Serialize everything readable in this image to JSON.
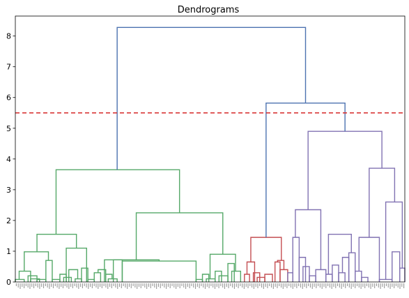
{
  "chart_data": {
    "type": "dendrogram",
    "title": "Dendrograms",
    "xlabel": "",
    "ylabel": "",
    "ylim": [
      0,
      8.65
    ],
    "yticks": [
      0,
      1,
      2,
      3,
      4,
      5,
      6,
      7,
      8
    ],
    "ytick_labels": [
      "0",
      "1",
      "2",
      "3",
      "4",
      "5",
      "6",
      "7",
      "8"
    ],
    "n_leaves": 200,
    "grid": false,
    "threshold": {
      "value": 5.5,
      "color": "#d62728",
      "style": "dashed"
    },
    "colors": {
      "above_threshold": "#4c72b0",
      "cluster_green": "#55a868",
      "cluster_red": "#c44e52",
      "cluster_purple": "#8172b2"
    },
    "links": [
      {
        "x1": 0,
        "x2": 7,
        "h": 0.08,
        "c": "green"
      },
      {
        "x1": 3,
        "x2": 12,
        "h": 0.35,
        "c": "green"
      },
      {
        "x1": 10,
        "x2": 17,
        "h": 0.2,
        "c": "green"
      },
      {
        "x1": 12,
        "x2": 19,
        "h": 0.1,
        "c": "green"
      },
      {
        "x1": 17,
        "x2": 24,
        "h": 0.08,
        "c": "green"
      },
      {
        "x1": 24,
        "x2": 29,
        "h": 0.7,
        "c": "green"
      },
      {
        "x1": 7,
        "x2": 26,
        "h": 0.98,
        "c": "green"
      },
      {
        "x1": 29,
        "x2": 35,
        "h": 0.08,
        "c": "green"
      },
      {
        "x1": 35,
        "x2": 40,
        "h": 0.25,
        "c": "green"
      },
      {
        "x1": 38,
        "x2": 44,
        "h": 0.15,
        "c": "green"
      },
      {
        "x1": 42,
        "x2": 49,
        "h": 0.4,
        "c": "green"
      },
      {
        "x1": 47,
        "x2": 52,
        "h": 0.1,
        "c": "green"
      },
      {
        "x1": 52,
        "x2": 57,
        "h": 0.45,
        "c": "green"
      },
      {
        "x1": 40,
        "x2": 56,
        "h": 1.1,
        "c": "green"
      },
      {
        "x1": 17,
        "x2": 48,
        "h": 1.55,
        "c": "green"
      },
      {
        "x1": 57,
        "x2": 62,
        "h": 0.08,
        "c": "green"
      },
      {
        "x1": 62,
        "x2": 67,
        "h": 0.3,
        "c": "green"
      },
      {
        "x1": 65,
        "x2": 71,
        "h": 0.4,
        "c": "green"
      },
      {
        "x1": 71,
        "x2": 76,
        "h": 0.25,
        "c": "green"
      },
      {
        "x1": 73,
        "x2": 80,
        "h": 0.1,
        "c": "green"
      },
      {
        "x1": 70,
        "x2": 84,
        "h": 0.72,
        "c": "green"
      },
      {
        "x1": 84,
        "x2": 142,
        "h": 0.68,
        "c": "green"
      },
      {
        "x1": 77,
        "x2": 113,
        "h": 0.72,
        "c": "green"
      },
      {
        "x1": 142,
        "x2": 147,
        "h": 0.08,
        "c": "green"
      },
      {
        "x1": 147,
        "x2": 152,
        "h": 0.25,
        "c": "green"
      },
      {
        "x1": 150,
        "x2": 157,
        "h": 0.1,
        "c": "green"
      },
      {
        "x1": 157,
        "x2": 162,
        "h": 0.35,
        "c": "green"
      },
      {
        "x1": 160,
        "x2": 167,
        "h": 0.2,
        "c": "green"
      },
      {
        "x1": 167,
        "x2": 172,
        "h": 0.6,
        "c": "green"
      },
      {
        "x1": 170,
        "x2": 177,
        "h": 0.35,
        "c": "green"
      },
      {
        "x1": 153,
        "x2": 173,
        "h": 0.9,
        "c": "green"
      },
      {
        "x1": 95,
        "x2": 163,
        "h": 2.25,
        "c": "green"
      },
      {
        "x1": 32,
        "x2": 129,
        "h": 3.65,
        "c": "green"
      },
      {
        "x1": 180,
        "x2": 184,
        "h": 0.25,
        "c": "red"
      },
      {
        "x1": 182,
        "x2": 188,
        "h": 0.65,
        "c": "red"
      },
      {
        "x1": 187,
        "x2": 192,
        "h": 0.3,
        "c": "red"
      },
      {
        "x1": 190,
        "x2": 196,
        "h": 0.15,
        "c": "red"
      },
      {
        "x1": 196,
        "x2": 202,
        "h": 0.25,
        "c": "red"
      },
      {
        "x1": 204,
        "x2": 208,
        "h": 0.65,
        "c": "red"
      },
      {
        "x1": 208,
        "x2": 214,
        "h": 0.4,
        "c": "red"
      },
      {
        "x1": 206,
        "x2": 211,
        "h": 0.7,
        "c": "red"
      },
      {
        "x1": 185,
        "x2": 209,
        "h": 1.45,
        "c": "red"
      },
      {
        "x1": 214,
        "x2": 218,
        "h": 0.3,
        "c": "purple"
      },
      {
        "x1": 218,
        "x2": 223,
        "h": 1.45,
        "c": "purple"
      },
      {
        "x1": 223,
        "x2": 228,
        "h": 0.8,
        "c": "purple"
      },
      {
        "x1": 226,
        "x2": 231,
        "h": 0.5,
        "c": "purple"
      },
      {
        "x1": 231,
        "x2": 236,
        "h": 0.2,
        "c": "purple"
      },
      {
        "x1": 236,
        "x2": 244,
        "h": 0.4,
        "c": "purple"
      },
      {
        "x1": 244,
        "x2": 249,
        "h": 0.25,
        "c": "purple"
      },
      {
        "x1": 220,
        "x2": 240,
        "h": 2.35,
        "c": "purple"
      },
      {
        "x1": 249,
        "x2": 254,
        "h": 0.55,
        "c": "purple"
      },
      {
        "x1": 254,
        "x2": 259,
        "h": 0.3,
        "c": "purple"
      },
      {
        "x1": 257,
        "x2": 262,
        "h": 0.8,
        "c": "purple"
      },
      {
        "x1": 262,
        "x2": 267,
        "h": 0.95,
        "c": "purple"
      },
      {
        "x1": 246,
        "x2": 264,
        "h": 1.55,
        "c": "purple"
      },
      {
        "x1": 267,
        "x2": 272,
        "h": 0.35,
        "c": "purple"
      },
      {
        "x1": 272,
        "x2": 277,
        "h": 0.15,
        "c": "purple"
      },
      {
        "x1": 270,
        "x2": 286,
        "h": 1.45,
        "c": "purple"
      },
      {
        "x1": 286,
        "x2": 296,
        "h": 0.08,
        "c": "purple"
      },
      {
        "x1": 296,
        "x2": 302,
        "h": 0.98,
        "c": "purple"
      },
      {
        "x1": 302,
        "x2": 306,
        "h": 0.45,
        "c": "purple"
      },
      {
        "x1": 291,
        "x2": 304,
        "h": 2.6,
        "c": "purple"
      },
      {
        "x1": 278,
        "x2": 298,
        "h": 3.7,
        "c": "purple"
      },
      {
        "x1": 230,
        "x2": 288,
        "h": 4.9,
        "c": "purple"
      },
      {
        "x1": 197,
        "x2": 259,
        "h": 5.82,
        "c": "blue"
      },
      {
        "x1": 80,
        "x2": 228,
        "h": 8.28,
        "c": "blue"
      }
    ]
  }
}
